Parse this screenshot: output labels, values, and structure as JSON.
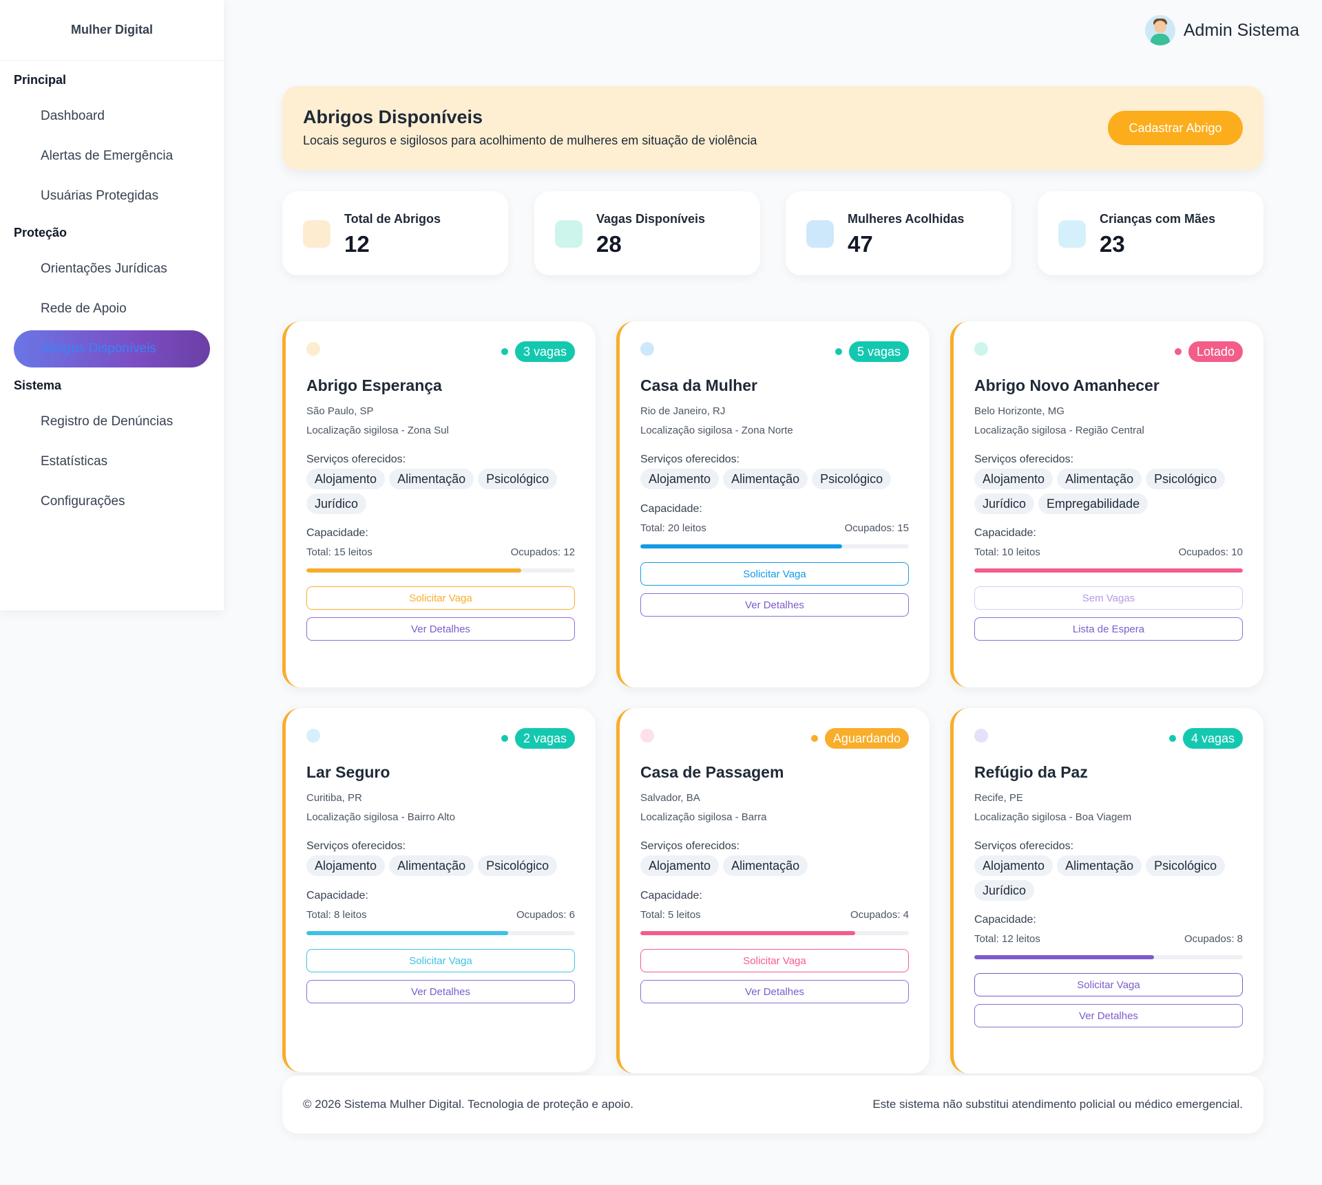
{
  "sidebar": {
    "brand": "Mulher Digital",
    "sections": [
      {
        "title": "Principal",
        "items": [
          "Dashboard",
          "Alertas de Emergência",
          "Usuárias Protegidas"
        ]
      },
      {
        "title": "Proteção",
        "items": [
          "Orientações Jurídicas",
          "Rede de Apoio",
          "Abrigos Disponíveis"
        ]
      },
      {
        "title": "Sistema",
        "items": [
          "Registro de Denúncias",
          "Estatísticas",
          "Configurações"
        ]
      }
    ],
    "active_item": "Abrigos Disponíveis"
  },
  "header": {
    "user_name": "Admin Sistema",
    "avatar_icon": "user-avatar-icon"
  },
  "banner": {
    "title": "Abrigos Disponíveis",
    "subtitle": "Locais seguros e sigilosos para acolhimento de mulheres em situação de violência",
    "button_label": "Cadastrar Abrigo"
  },
  "stats": [
    {
      "label": "Total de Abrigos",
      "value": "12",
      "color": "#fdecd0"
    },
    {
      "label": "Vagas Disponíveis",
      "value": "28",
      "color": "#cdf5ec"
    },
    {
      "label": "Mulheres Acolhidas",
      "value": "47",
      "color": "#cde8fb"
    },
    {
      "label": "Crianças com Mães",
      "value": "23",
      "color": "#d6f0fb"
    }
  ],
  "common": {
    "services_label": "Serviços oferecidos:",
    "capacity_label": "Capacidade:"
  },
  "shelters": [
    {
      "name": "Abrigo Esperança",
      "city": "São Paulo, SP",
      "location": "Localização sigilosa - Zona Sul",
      "badge": "3 vagas",
      "badge_color": "#14c8b0",
      "dot_color": "#fdecd0",
      "services": [
        "Alojamento",
        "Alimentação",
        "Psicológico",
        "Jurídico"
      ],
      "total": "Total: 15 leitos",
      "occupied": "Ocupados: 12",
      "occupancy_pct": 80,
      "bar_color": "#f8ad2b",
      "primary_btn": "Solicitar Vaga",
      "primary_color": "#f8ad2b",
      "secondary_btn": "Ver Detalhes"
    },
    {
      "name": "Casa da Mulher",
      "city": "Rio de Janeiro, RJ",
      "location": "Localização sigilosa - Zona Norte",
      "badge": "5 vagas",
      "badge_color": "#14c8b0",
      "dot_color": "#cde8fb",
      "services": [
        "Alojamento",
        "Alimentação",
        "Psicológico"
      ],
      "total": "Total: 20 leitos",
      "occupied": "Ocupados: 15",
      "occupancy_pct": 75,
      "bar_color": "#139be6",
      "primary_btn": "Solicitar Vaga",
      "primary_color": "#139be6",
      "secondary_btn": "Ver Detalhes"
    },
    {
      "name": "Abrigo Novo Amanhecer",
      "city": "Belo Horizonte, MG",
      "location": "Localização sigilosa - Região Central",
      "badge": "Lotado",
      "badge_color": "#f25d8a",
      "dot_color": "#cdf5ec",
      "services": [
        "Alojamento",
        "Alimentação",
        "Psicológico",
        "Jurídico",
        "Empregabilidade"
      ],
      "total": "Total: 10 leitos",
      "occupied": "Ocupados: 10",
      "occupancy_pct": 100,
      "bar_color": "#f25d8a",
      "primary_btn": "Sem Vagas",
      "primary_color": "#b59be6",
      "secondary_btn": "Lista de Espera"
    },
    {
      "name": "Lar Seguro",
      "city": "Curitiba, PR",
      "location": "Localização sigilosa - Bairro Alto",
      "badge": "2 vagas",
      "badge_color": "#14c8b0",
      "dot_color": "#d6f0fb",
      "services": [
        "Alojamento",
        "Alimentação",
        "Psicológico"
      ],
      "total": "Total: 8 leitos",
      "occupied": "Ocupados: 6",
      "occupancy_pct": 75,
      "bar_color": "#3ec1e3",
      "primary_btn": "Solicitar Vaga",
      "primary_color": "#3ec1e3",
      "secondary_btn": "Ver Detalhes"
    },
    {
      "name": "Casa de Passagem",
      "city": "Salvador, BA",
      "location": "Localização sigilosa - Barra",
      "badge": "Aguardando",
      "badge_color": "#f8ad2b",
      "dot_color": "#fde0e9",
      "services": [
        "Alojamento",
        "Alimentação"
      ],
      "total": "Total: 5 leitos",
      "occupied": "Ocupados: 4",
      "occupancy_pct": 80,
      "bar_color": "#f25d8a",
      "primary_btn": "Solicitar Vaga",
      "primary_color": "#f25d8a",
      "secondary_btn": "Ver Detalhes"
    },
    {
      "name": "Refúgio da Paz",
      "city": "Recife, PE",
      "location": "Localização sigilosa - Boa Viagem",
      "badge": "4 vagas",
      "badge_color": "#14c8b0",
      "dot_color": "#e6e0fb",
      "services": [
        "Alojamento",
        "Alimentação",
        "Psicológico",
        "Jurídico"
      ],
      "total": "Total: 12 leitos",
      "occupied": "Ocupados: 8",
      "occupancy_pct": 67,
      "bar_color": "#7c5ccc",
      "primary_btn": "Solicitar Vaga",
      "primary_color": "#7c5ccc",
      "secondary_btn": "Ver Detalhes"
    }
  ],
  "footer": {
    "left": "© 2026 Sistema Mulher Digital. Tecnologia de proteção e apoio.",
    "right": "Este sistema não substitui atendimento policial ou médico emergencial."
  }
}
